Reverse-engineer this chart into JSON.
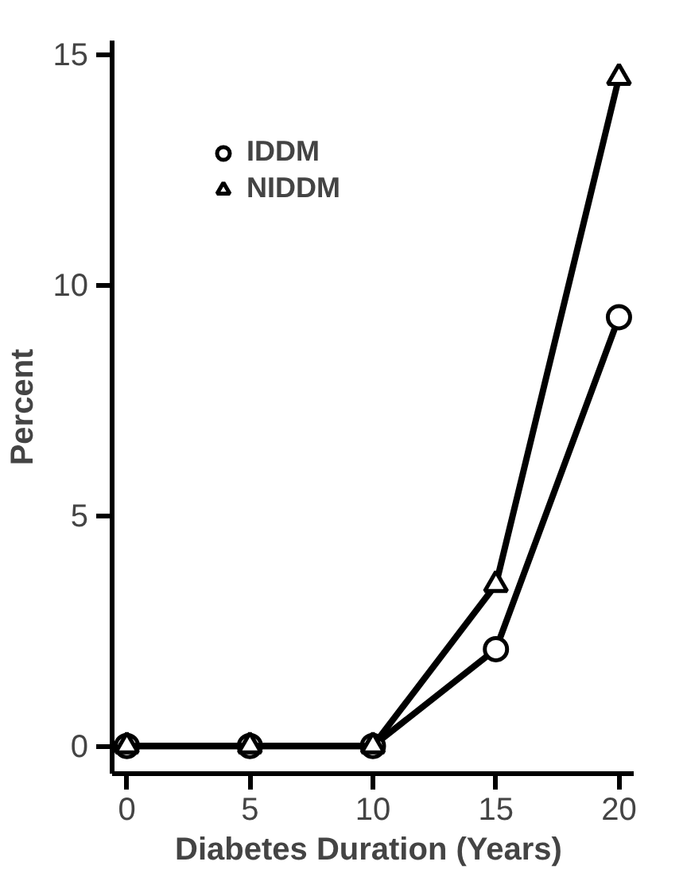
{
  "chart_data": {
    "type": "line",
    "xlabel": "Diabetes  Duration (Years)",
    "ylabel": "Percent",
    "x": [
      0,
      5,
      10,
      15,
      20
    ],
    "series": [
      {
        "name": "IDDM",
        "color": "#000000",
        "marker": "circle",
        "values": [
          0,
          0,
          0,
          2.1,
          9.3
        ]
      },
      {
        "name": "NIDDM",
        "color": "#000000",
        "marker": "triangle",
        "values": [
          0,
          0,
          0,
          3.5,
          14.5
        ]
      }
    ],
    "xlim": [
      -0.6,
      20.6
    ],
    "ylim": [
      -0.6,
      15.3
    ],
    "xticks": [
      0,
      5,
      10,
      15,
      20
    ],
    "yticks": [
      0,
      5,
      10,
      15
    ],
    "grid": false,
    "legend": "top left",
    "line_style": "solid"
  }
}
